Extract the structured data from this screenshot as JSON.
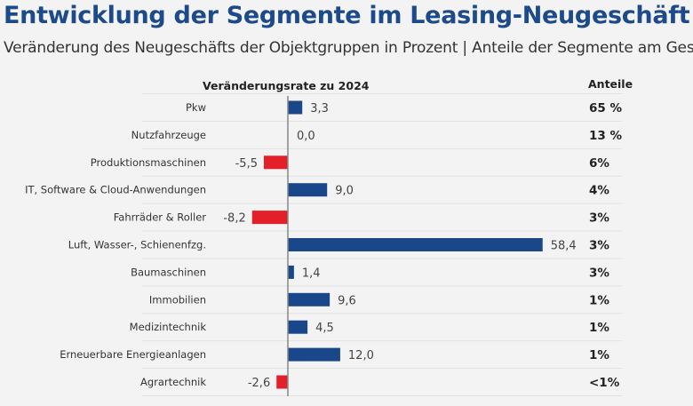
{
  "title": "Entwicklung der Segmente im Leasing-Neugeschäft",
  "subtitle": "Veränderung des Neugeschäfts der Objektgruppen in Prozent | Anteile der Segmente am Gesam",
  "colors": {
    "title": "#1d4a8a",
    "positive": "#1a468a",
    "negative": "#e3202a"
  },
  "chart_data": {
    "type": "bar",
    "orientation": "horizontal",
    "xlabel": "Veränderungsrate zu 2024",
    "share_header": "Anteile",
    "categories": [
      "Pkw",
      "Nutzfahrzeuge",
      "Produktionsmaschinen",
      "IT, Software & Cloud-Anwendungen",
      "Fahrräder & Roller",
      "Luft, Wasser-, Schienenfzg.",
      "Baumaschinen",
      "Immobilien",
      "Medizintechnik",
      "Erneuerbare Energieanlagen",
      "Agrartechnik"
    ],
    "values": [
      3.3,
      0.0,
      -5.5,
      9.0,
      -8.2,
      58.4,
      1.4,
      9.6,
      4.5,
      12.0,
      -2.6
    ],
    "value_labels": [
      "3,3",
      "0,0",
      "-5,5",
      "9,0",
      "-8,2",
      "58,4",
      "1,4",
      "9,6",
      "4,5",
      "12,0",
      "-2,6"
    ],
    "shares": [
      "65 %",
      "13 %",
      "6%",
      "4%",
      "3%",
      "3%",
      "3%",
      "1%",
      "1%",
      "1%",
      "<1%"
    ],
    "grid": true
  }
}
